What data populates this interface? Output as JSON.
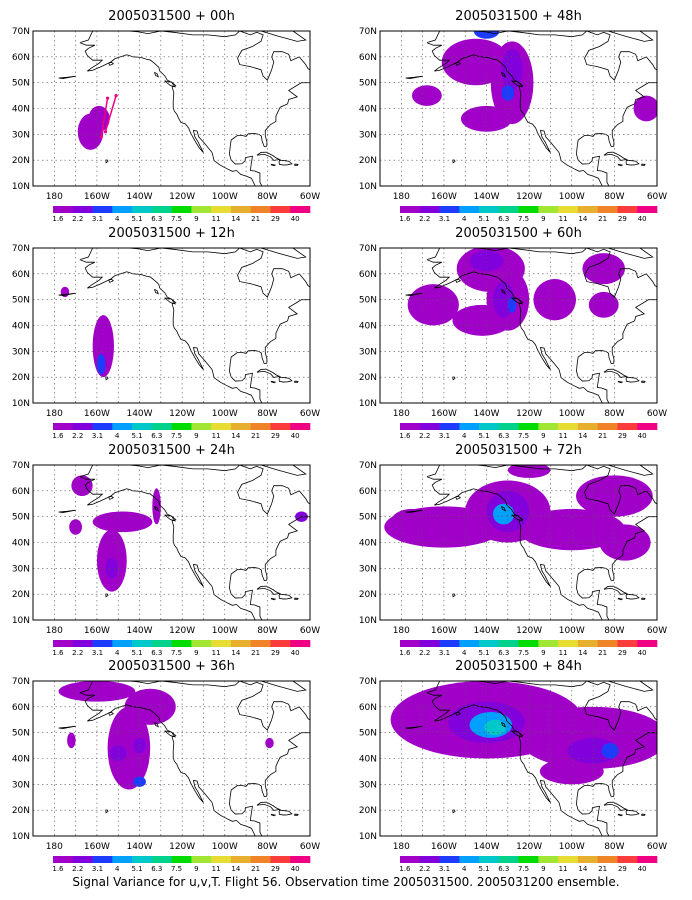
{
  "caption": "Signal Variance for u,v,T. Flight 56. Observation time 2005031500. 2005031200 ensemble.",
  "colors": {
    "levels": [
      "#a000c8",
      "#8200dc",
      "#1e3cff",
      "#00a0ff",
      "#00c8c8",
      "#00d28c",
      "#00dc00",
      "#a0e632",
      "#e6dc32",
      "#e6af2d",
      "#f08228",
      "#fa3c3c",
      "#f00082"
    ],
    "land": "#ffffff",
    "coast": "#000000",
    "grid": "#555555"
  },
  "chart_data": [
    {
      "type": "heatmap",
      "title": "2005031500 + 00h",
      "lead_hours": 0
    },
    {
      "type": "heatmap",
      "title": "2005031500 + 48h",
      "lead_hours": 48
    },
    {
      "type": "heatmap",
      "title": "2005031500 + 12h",
      "lead_hours": 12
    },
    {
      "type": "heatmap",
      "title": "2005031500 + 60h",
      "lead_hours": 60
    },
    {
      "type": "heatmap",
      "title": "2005031500 + 24h",
      "lead_hours": 24
    },
    {
      "type": "heatmap",
      "title": "2005031500 + 72h",
      "lead_hours": 72
    },
    {
      "type": "heatmap",
      "title": "2005031500 + 36h",
      "lead_hours": 36
    },
    {
      "type": "heatmap",
      "title": "2005031500 + 84h",
      "lead_hours": 84
    }
  ],
  "axes": {
    "lon_ticks": [
      "180",
      "160W",
      "140W",
      "120W",
      "100W",
      "80W",
      "60W"
    ],
    "lat_ticks": [
      "10N",
      "20N",
      "30N",
      "40N",
      "50N",
      "60N",
      "70N"
    ],
    "lon_range": [
      -190,
      -60
    ],
    "lat_range": [
      10,
      70
    ],
    "grid": true
  },
  "colorbar": {
    "labels": [
      "1.6",
      "2.2",
      "3.1",
      "4",
      "5.1",
      "6.3",
      "7.5",
      "9",
      "11",
      "14",
      "21",
      "29",
      "40"
    ]
  },
  "blobs": [
    [
      {
        "lon": -163,
        "lat": 31,
        "rx": 6,
        "ry": 7,
        "lvl": 0
      },
      {
        "lon": -159,
        "lat": 36,
        "rx": 5,
        "ry": 5,
        "lvl": 0
      }
    ],
    [
      {
        "lon": -145,
        "lat": 58,
        "rx": 16,
        "ry": 9,
        "lvl": 0
      },
      {
        "lon": -128,
        "lat": 50,
        "rx": 10,
        "ry": 16,
        "lvl": 0
      },
      {
        "lon": -168,
        "lat": 45,
        "rx": 7,
        "ry": 4,
        "lvl": 0
      },
      {
        "lon": -140,
        "lat": 36,
        "rx": 12,
        "ry": 5,
        "lvl": 0
      },
      {
        "lon": -128,
        "lat": 55,
        "rx": 5,
        "ry": 8,
        "lvl": 1
      },
      {
        "lon": -130,
        "lat": 46,
        "rx": 3,
        "ry": 3,
        "lvl": 2
      },
      {
        "lon": -140,
        "lat": 70,
        "rx": 6,
        "ry": 3,
        "lvl": 2
      },
      {
        "lon": -65,
        "lat": 40,
        "rx": 6,
        "ry": 5,
        "lvl": 0
      }
    ],
    [
      {
        "lon": -157,
        "lat": 32,
        "rx": 5,
        "ry": 12,
        "lvl": 0
      },
      {
        "lon": -158,
        "lat": 25,
        "rx": 2,
        "ry": 4,
        "lvl": 2
      },
      {
        "lon": -175,
        "lat": 53,
        "rx": 2,
        "ry": 2,
        "lvl": 0
      }
    ],
    [
      {
        "lon": -138,
        "lat": 62,
        "rx": 16,
        "ry": 9,
        "lvl": 0
      },
      {
        "lon": -165,
        "lat": 48,
        "rx": 12,
        "ry": 8,
        "lvl": 0
      },
      {
        "lon": -130,
        "lat": 50,
        "rx": 10,
        "ry": 12,
        "lvl": 0
      },
      {
        "lon": -108,
        "lat": 50,
        "rx": 10,
        "ry": 8,
        "lvl": 0
      },
      {
        "lon": -85,
        "lat": 62,
        "rx": 10,
        "ry": 6,
        "lvl": 0
      },
      {
        "lon": -142,
        "lat": 42,
        "rx": 14,
        "ry": 6,
        "lvl": 0
      },
      {
        "lon": -132,
        "lat": 50,
        "rx": 5,
        "ry": 7,
        "lvl": 1
      },
      {
        "lon": -128,
        "lat": 48,
        "rx": 2,
        "ry": 3,
        "lvl": 2
      },
      {
        "lon": -140,
        "lat": 65,
        "rx": 8,
        "ry": 4,
        "lvl": 1
      },
      {
        "lon": -85,
        "lat": 48,
        "rx": 7,
        "ry": 5,
        "lvl": 0
      }
    ],
    [
      {
        "lon": -167,
        "lat": 62,
        "rx": 5,
        "ry": 4,
        "lvl": 0
      },
      {
        "lon": -148,
        "lat": 48,
        "rx": 14,
        "ry": 4,
        "lvl": 0
      },
      {
        "lon": -153,
        "lat": 33,
        "rx": 7,
        "ry": 12,
        "lvl": 0
      },
      {
        "lon": -153,
        "lat": 30,
        "rx": 3,
        "ry": 4,
        "lvl": 1
      },
      {
        "lon": -132,
        "lat": 54,
        "rx": 2,
        "ry": 7,
        "lvl": 0
      },
      {
        "lon": -170,
        "lat": 46,
        "rx": 3,
        "ry": 3,
        "lvl": 0
      },
      {
        "lon": -64,
        "lat": 50,
        "rx": 3,
        "ry": 2,
        "lvl": 1
      }
    ],
    [
      {
        "lon": -160,
        "lat": 46,
        "rx": 28,
        "ry": 8,
        "lvl": 0
      },
      {
        "lon": -130,
        "lat": 52,
        "rx": 20,
        "ry": 12,
        "lvl": 0
      },
      {
        "lon": -100,
        "lat": 45,
        "rx": 25,
        "ry": 8,
        "lvl": 0
      },
      {
        "lon": -80,
        "lat": 58,
        "rx": 18,
        "ry": 8,
        "lvl": 0
      },
      {
        "lon": -75,
        "lat": 40,
        "rx": 12,
        "ry": 7,
        "lvl": 0
      },
      {
        "lon": -130,
        "lat": 52,
        "rx": 10,
        "ry": 8,
        "lvl": 1
      },
      {
        "lon": -132,
        "lat": 51,
        "rx": 5,
        "ry": 4,
        "lvl": 3
      },
      {
        "lon": -120,
        "lat": 68,
        "rx": 10,
        "ry": 3,
        "lvl": 0
      },
      {
        "lon": -175,
        "lat": 48,
        "rx": 10,
        "ry": 5,
        "lvl": 0
      }
    ],
    [
      {
        "lon": -160,
        "lat": 66,
        "rx": 18,
        "ry": 4,
        "lvl": 0
      },
      {
        "lon": -145,
        "lat": 44,
        "rx": 10,
        "ry": 16,
        "lvl": 0
      },
      {
        "lon": -135,
        "lat": 60,
        "rx": 12,
        "ry": 7,
        "lvl": 0
      },
      {
        "lon": -150,
        "lat": 42,
        "rx": 4,
        "ry": 3,
        "lvl": 1
      },
      {
        "lon": -140,
        "lat": 45,
        "rx": 3,
        "ry": 3,
        "lvl": 1
      },
      {
        "lon": -140,
        "lat": 31,
        "rx": 3,
        "ry": 2,
        "lvl": 2
      },
      {
        "lon": -172,
        "lat": 47,
        "rx": 2,
        "ry": 3,
        "lvl": 0
      },
      {
        "lon": -79,
        "lat": 46,
        "rx": 2,
        "ry": 2,
        "lvl": 0
      }
    ],
    [
      {
        "lon": -140,
        "lat": 55,
        "rx": 45,
        "ry": 15,
        "lvl": 0
      },
      {
        "lon": -90,
        "lat": 48,
        "rx": 35,
        "ry": 12,
        "lvl": 0
      },
      {
        "lon": -100,
        "lat": 35,
        "rx": 15,
        "ry": 5,
        "lvl": 0
      },
      {
        "lon": -140,
        "lat": 54,
        "rx": 18,
        "ry": 8,
        "lvl": 1
      },
      {
        "lon": -138,
        "lat": 53,
        "rx": 10,
        "ry": 5,
        "lvl": 3
      },
      {
        "lon": -136,
        "lat": 52,
        "rx": 5,
        "ry": 3,
        "lvl": 4
      },
      {
        "lon": -90,
        "lat": 43,
        "rx": 12,
        "ry": 5,
        "lvl": 1
      },
      {
        "lon": -82,
        "lat": 43,
        "rx": 4,
        "ry": 3,
        "lvl": 2
      }
    ]
  ]
}
